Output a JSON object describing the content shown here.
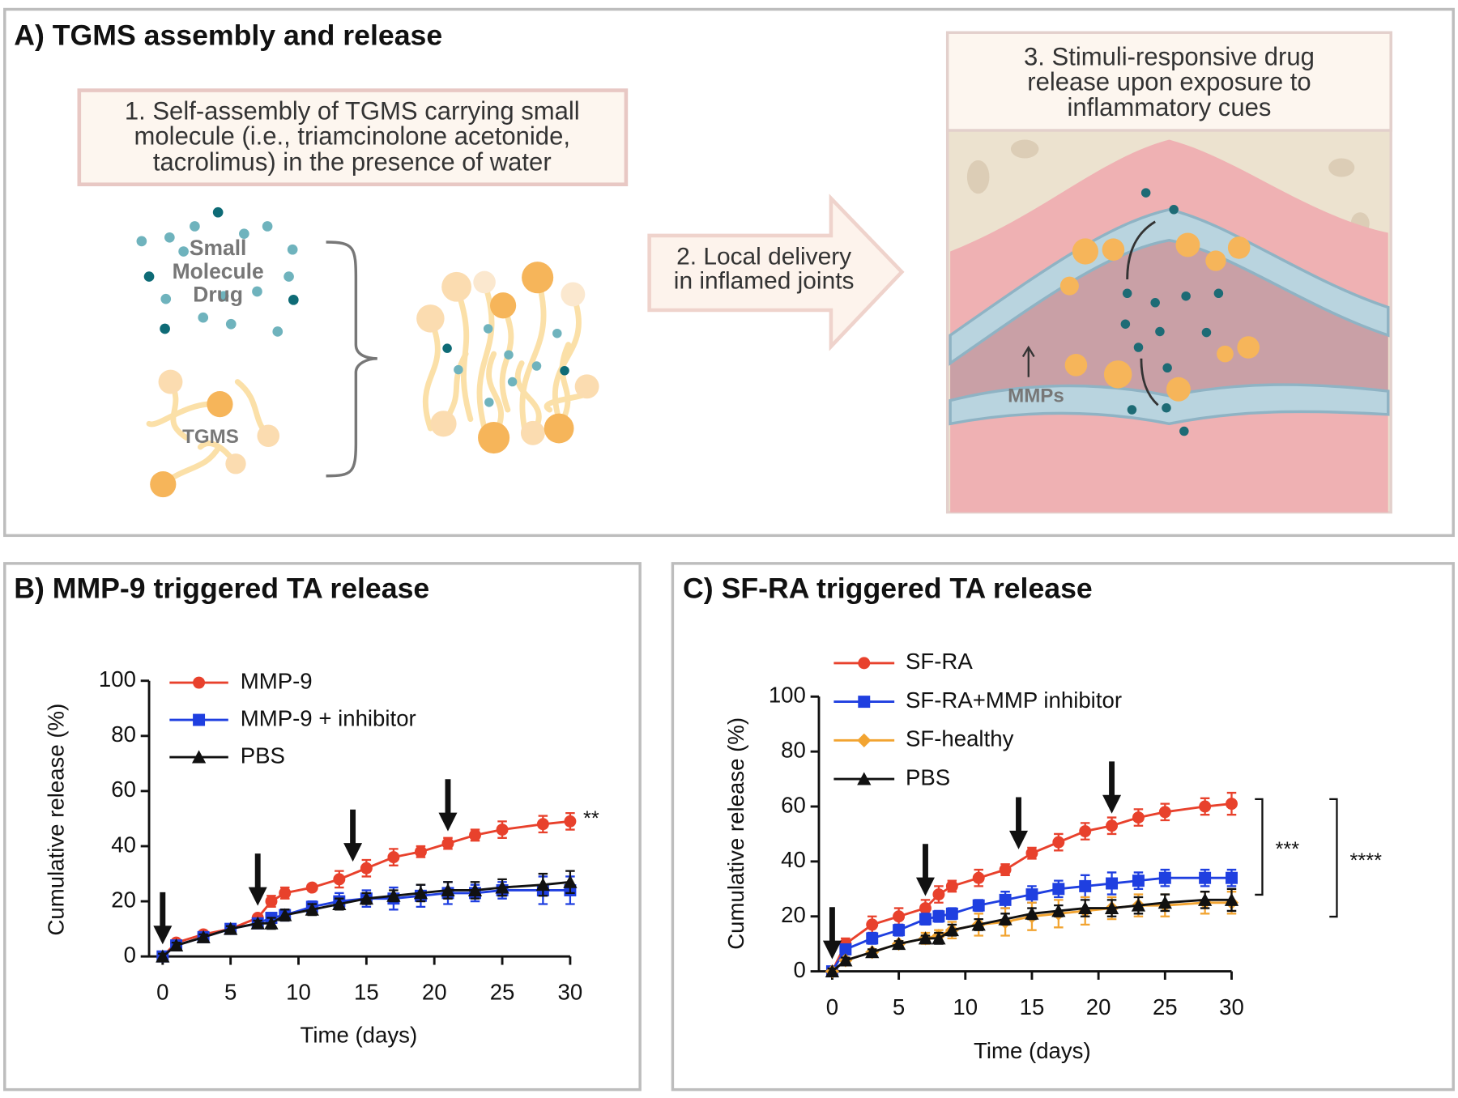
{
  "panel_a": {
    "title": "A) TGMS assembly and release",
    "step1": [
      "1. Self-assembly of TGMS carrying small",
      "molecule (i.e., triamcinolone acetonide,",
      "tacrolimus) in the presence of water"
    ],
    "drug_label": [
      "Small",
      "Molecule",
      "Drug"
    ],
    "tgms_label": "TGMS",
    "step2": [
      "2. Local delivery",
      "in inflamed joints"
    ],
    "step3": [
      "3. Stimuli-responsive drug",
      "release upon exposure to",
      "inflammatory cues"
    ],
    "mmps_label": "MMPs"
  },
  "chart_data": [
    {
      "type": "line",
      "title": "B) MMP-9 triggered TA release",
      "x_label": "Time (days)",
      "y_label": "Cumulative release (%)",
      "x": [
        0,
        1,
        3,
        5,
        7,
        8,
        9,
        11,
        13,
        15,
        17,
        19,
        21,
        23,
        25,
        28,
        30
      ],
      "xlim": [
        -1,
        30
      ],
      "ylim": [
        0,
        100
      ],
      "xticks": [
        0,
        5,
        10,
        15,
        20,
        25,
        30
      ],
      "yticks": [
        0,
        20,
        40,
        60,
        80,
        100
      ],
      "arrows": [
        0,
        7,
        14,
        21
      ],
      "series": [
        {
          "name": "MMP-9",
          "color": "#e8412c",
          "marker": "circle",
          "values": [
            0,
            5,
            8,
            10,
            14,
            20,
            23,
            25,
            28,
            32,
            36,
            38,
            41,
            44,
            46,
            48,
            49
          ],
          "errors": [
            1,
            1,
            1,
            1,
            1,
            2,
            2,
            1,
            3,
            3,
            3,
            2,
            2,
            2,
            3,
            3,
            3
          ]
        },
        {
          "name": "MMP-9 + inhibitor",
          "color": "#1f3fe0",
          "marker": "square",
          "values": [
            0,
            4,
            7,
            10,
            12,
            14,
            15,
            18,
            20,
            21,
            21,
            22,
            23,
            23,
            24,
            24,
            24
          ],
          "errors": [
            1,
            1,
            1,
            1,
            1,
            1,
            2,
            2,
            3,
            3,
            4,
            4,
            4,
            3,
            3,
            5,
            5
          ]
        },
        {
          "name": "PBS",
          "color": "#111111",
          "marker": "triangle",
          "values": [
            0,
            4,
            7,
            10,
            12,
            12,
            15,
            17,
            19,
            21,
            22,
            23,
            24,
            24,
            25,
            26,
            27
          ],
          "errors": [
            1,
            1,
            1,
            1,
            1,
            2,
            2,
            2,
            2,
            2,
            2,
            3,
            3,
            3,
            3,
            4,
            4
          ]
        }
      ],
      "annotations": [
        {
          "text": "**",
          "series": 0
        }
      ]
    },
    {
      "type": "line",
      "title": "C) SF-RA triggered TA release",
      "x_label": "Time (days)",
      "y_label": "Cumulative release (%)",
      "x": [
        0,
        1,
        3,
        5,
        7,
        8,
        9,
        11,
        13,
        15,
        17,
        19,
        21,
        23,
        25,
        28,
        30
      ],
      "xlim": [
        -1,
        30
      ],
      "ylim": [
        0,
        100
      ],
      "xticks": [
        0,
        5,
        10,
        15,
        20,
        25,
        30
      ],
      "yticks": [
        0,
        20,
        40,
        60,
        80,
        100
      ],
      "arrows": [
        0,
        7,
        14,
        21
      ],
      "series": [
        {
          "name": "SF-RA",
          "color": "#e8412c",
          "marker": "circle",
          "values": [
            0,
            10,
            17,
            20,
            23,
            28,
            31,
            34,
            37,
            43,
            47,
            51,
            53,
            56,
            58,
            60,
            61
          ],
          "errors": [
            1,
            2,
            3,
            3,
            3,
            3,
            2,
            3,
            2,
            2,
            3,
            3,
            3,
            3,
            3,
            3,
            4
          ]
        },
        {
          "name": "SF-RA+MMP inhibitor",
          "color": "#1f3fe0",
          "marker": "square",
          "values": [
            0,
            8,
            12,
            15,
            19,
            20,
            21,
            24,
            26,
            28,
            30,
            31,
            32,
            33,
            34,
            34,
            34
          ],
          "errors": [
            1,
            1,
            2,
            2,
            2,
            2,
            2,
            2,
            3,
            3,
            3,
            4,
            4,
            3,
            3,
            3,
            3
          ]
        },
        {
          "name": "SF-healthy",
          "color": "#f2a431",
          "marker": "diamond",
          "values": [
            0,
            4,
            7,
            10,
            12,
            13,
            15,
            17,
            18,
            20,
            21,
            22,
            23,
            24,
            24,
            25,
            25
          ],
          "errors": [
            1,
            1,
            1,
            1,
            2,
            2,
            3,
            4,
            5,
            5,
            5,
            5,
            4,
            4,
            4,
            4,
            4
          ]
        },
        {
          "name": "PBS",
          "color": "#111111",
          "marker": "triangle",
          "values": [
            0,
            4,
            7,
            10,
            12,
            12,
            15,
            17,
            19,
            21,
            22,
            23,
            23,
            24,
            25,
            26,
            26
          ],
          "errors": [
            1,
            1,
            1,
            1,
            1,
            2,
            2,
            2,
            2,
            2,
            2,
            3,
            3,
            3,
            3,
            3,
            4
          ]
        }
      ],
      "annotations": [
        {
          "text": "***",
          "between": [
            0,
            1
          ]
        },
        {
          "text": "****",
          "between": [
            0,
            3
          ]
        }
      ]
    }
  ]
}
